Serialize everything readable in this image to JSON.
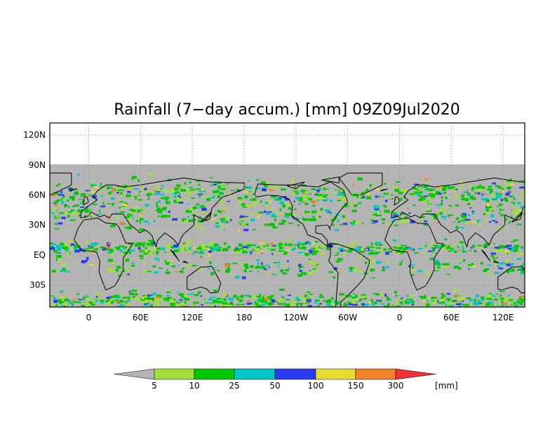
{
  "map": {
    "title": "Rainfall (7−day accum.) [mm] 09Z09Jul2020",
    "lat_labels": [
      "120N",
      "90N",
      "60N",
      "30N",
      "EQ",
      "30S"
    ],
    "lat_values": [
      120,
      90,
      60,
      30,
      0,
      -30
    ],
    "lon_labels": [
      "0",
      "60E",
      "120E",
      "180",
      "120W",
      "60W",
      "0",
      "60E",
      "120E"
    ],
    "lon_values": [
      0,
      60,
      120,
      180,
      240,
      300,
      360,
      420,
      480
    ],
    "lon_range": [
      -45,
      505
    ],
    "lat_range": [
      -52,
      132
    ],
    "data_lat_top": 90,
    "grid_color": "#9a9a9a",
    "no_rain_color": "#b4b4b4",
    "land_outline_color": "#000000"
  },
  "colorbar": {
    "unit": "[mm]",
    "bins": [
      {
        "color": "#b4b4b4",
        "label": ""
      },
      {
        "color": "#9fe13a",
        "label": "5"
      },
      {
        "color": "#00c800",
        "label": "10"
      },
      {
        "color": "#00c8c8",
        "label": "25"
      },
      {
        "color": "#2a3cf0",
        "label": "50"
      },
      {
        "color": "#e6dc32",
        "label": "100"
      },
      {
        "color": "#f08228",
        "label": "150"
      },
      {
        "color": "#f03232",
        "label": "300"
      }
    ]
  }
}
